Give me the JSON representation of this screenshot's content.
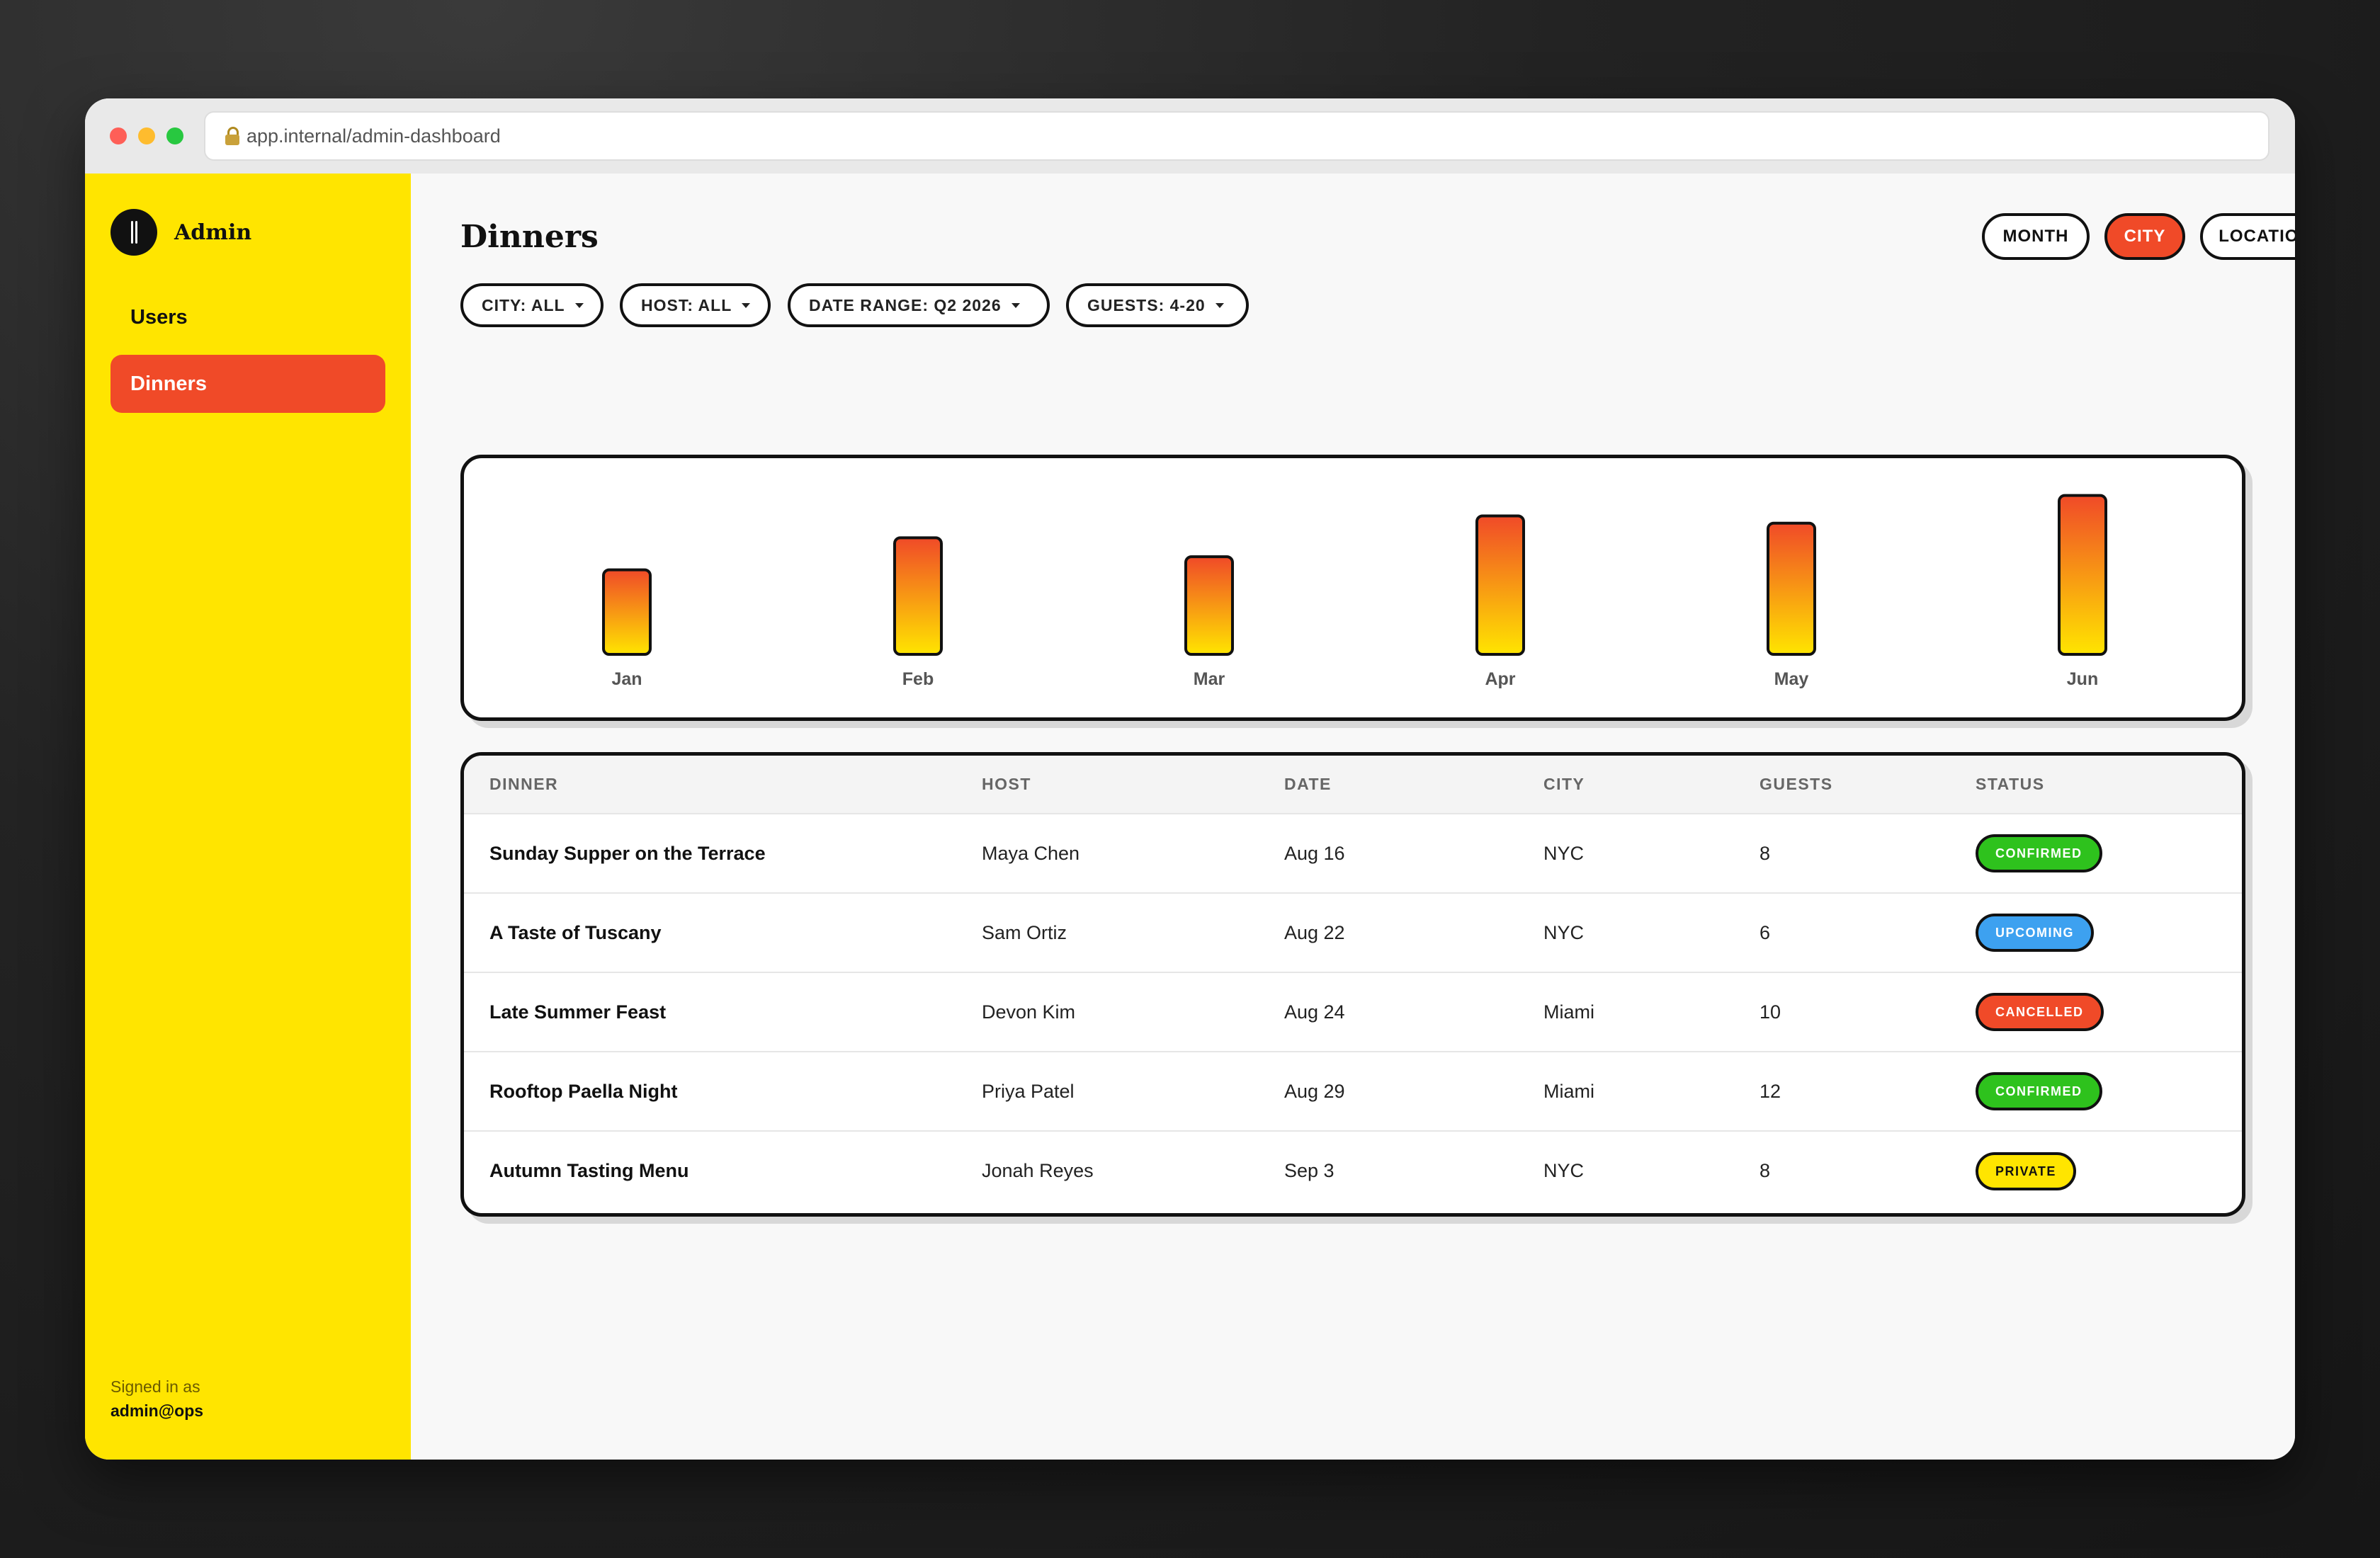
{
  "browser": {
    "url": "app.internal/admin-dashboard"
  },
  "sidebar": {
    "brand": "Admin",
    "items": [
      {
        "label": "Users"
      },
      {
        "label": "Dinners"
      }
    ],
    "active": "Dinners",
    "signed_in_label": "Signed in as",
    "signed_in_user": "admin@ops"
  },
  "header": {
    "title": "Dinners",
    "group_by": [
      {
        "label": "MONTH"
      },
      {
        "label": "CITY"
      },
      {
        "label": "LOCATION"
      }
    ],
    "active_group": "CITY"
  },
  "filters": [
    {
      "label": "CITY: ALL"
    },
    {
      "label": "HOST: ALL"
    },
    {
      "label": "DATE RANGE: Q2 2026"
    },
    {
      "label": "GUESTS: 4-20"
    }
  ],
  "colors": {
    "accent": "#f04a28",
    "brand_yellow": "#ffe500",
    "confirmed": "#2ec21d",
    "upcoming": "#3da1f0",
    "cancelled": "#f04a28",
    "private": "#ffe500"
  },
  "chart_data": {
    "type": "bar",
    "categories": [
      "Jan",
      "Feb",
      "Mar",
      "Apr",
      "May",
      "Jun"
    ],
    "values": [
      58,
      80,
      67,
      95,
      90,
      109
    ],
    "ylim": [
      0,
      120
    ],
    "grid": false
  },
  "table": {
    "columns": [
      "DINNER",
      "HOST",
      "DATE",
      "CITY",
      "GUESTS",
      "STATUS"
    ],
    "rows": [
      {
        "dinner": "Sunday Supper on the Terrace",
        "host": "Maya Chen",
        "date": "Aug 16",
        "city": "NYC",
        "guests": "8",
        "status": "CONFIRMED",
        "status_kind": "confirmed"
      },
      {
        "dinner": "A Taste of Tuscany",
        "host": "Sam Ortiz",
        "date": "Aug 22",
        "city": "NYC",
        "guests": "6",
        "status": "UPCOMING",
        "status_kind": "upcoming"
      },
      {
        "dinner": "Late Summer Feast",
        "host": "Devon Kim",
        "date": "Aug 24",
        "city": "Miami",
        "guests": "10",
        "status": "CANCELLED",
        "status_kind": "cancelled"
      },
      {
        "dinner": "Rooftop Paella Night",
        "host": "Priya Patel",
        "date": "Aug 29",
        "city": "Miami",
        "guests": "12",
        "status": "CONFIRMED",
        "status_kind": "confirmed"
      },
      {
        "dinner": "Autumn Tasting Menu",
        "host": "Jonah Reyes",
        "date": "Sep 3",
        "city": "NYC",
        "guests": "8",
        "status": "PRIVATE",
        "status_kind": "private"
      }
    ]
  }
}
